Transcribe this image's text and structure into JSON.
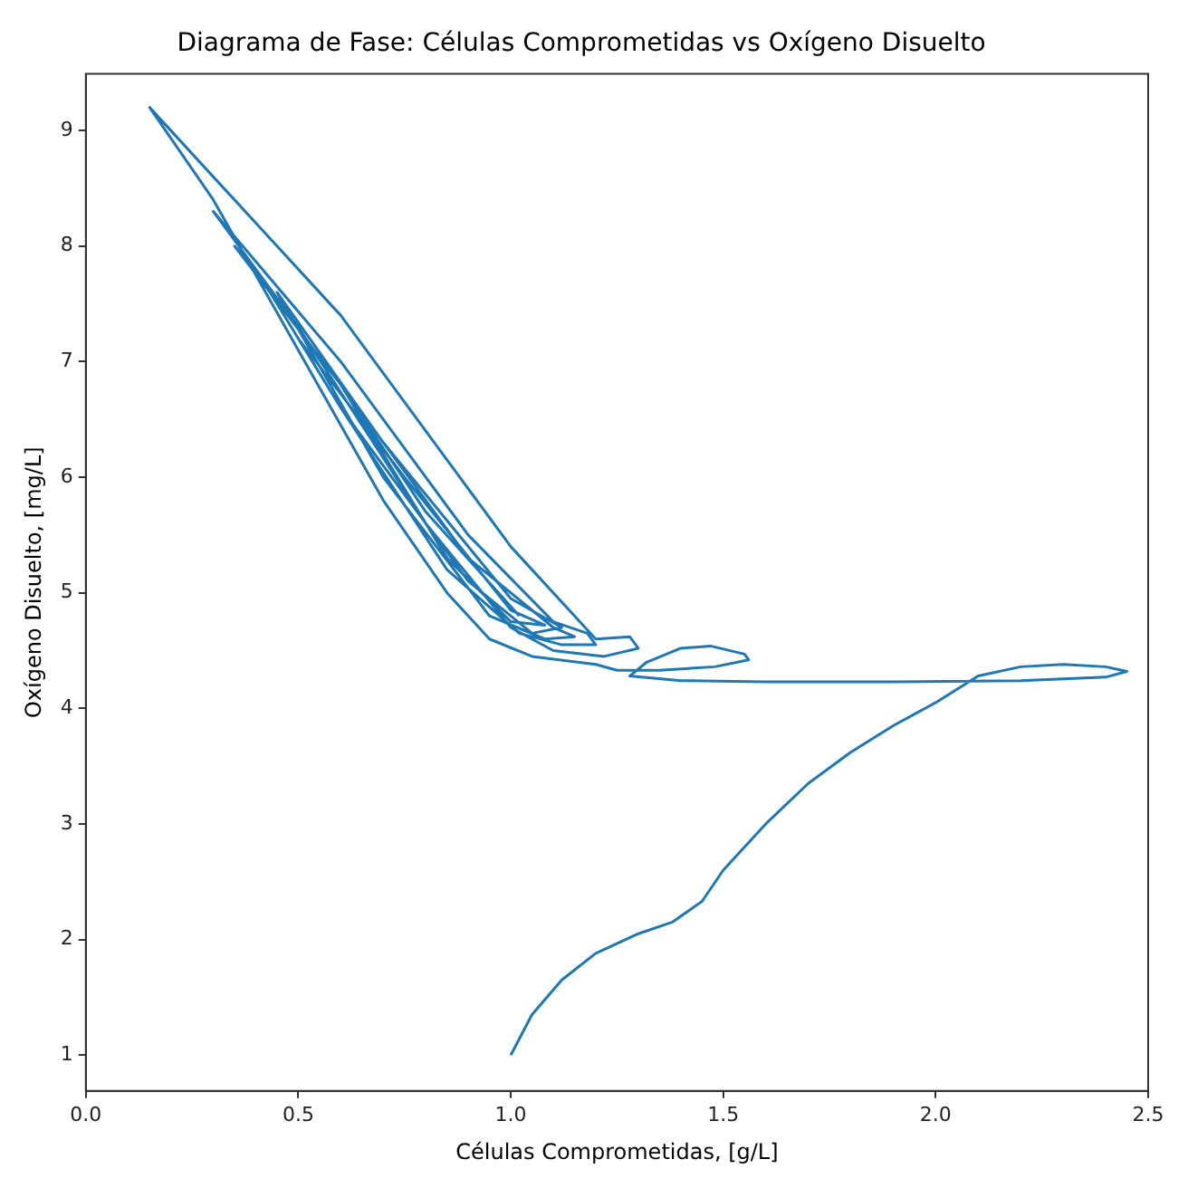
{
  "chart_data": {
    "type": "line",
    "title": "Diagrama de Fase: Células Comprometidas vs Oxígeno Disuelto",
    "xlabel": "Células Comprometidas, [g/L]",
    "ylabel": "Oxígeno Disuelto, [mg/L]",
    "xlim": [
      0,
      2.5
    ],
    "ylim": [
      0.69,
      9.49
    ],
    "xticks": [
      {
        "value": 0,
        "label": "0.0"
      },
      {
        "value": 0.5,
        "label": "0.5"
      },
      {
        "value": 1,
        "label": "1.0"
      },
      {
        "value": 1.5,
        "label": "1.5"
      },
      {
        "value": 2,
        "label": "2.0"
      },
      {
        "value": 2.5,
        "label": "2.5"
      }
    ],
    "yticks": [
      1,
      2,
      3,
      4,
      5,
      6,
      7,
      8,
      9
    ],
    "grid": false,
    "legend": false,
    "marker": "none",
    "line_style": "solid",
    "series": [
      {
        "color": "#1f77b4",
        "x": [
          1.0,
          1.05,
          1.12,
          1.2,
          1.3,
          1.38,
          1.45,
          1.5,
          1.6,
          1.7,
          1.8,
          1.9,
          2.0,
          2.1,
          2.2,
          2.3,
          2.4,
          2.45,
          2.4,
          2.2,
          1.9,
          1.6,
          1.4,
          1.28,
          1.32,
          1.4,
          1.47,
          1.55,
          1.56,
          1.48,
          1.35,
          1.25,
          1.2,
          1.05,
          0.95,
          0.85,
          0.7,
          0.5,
          0.3,
          0.15,
          0.6,
          1.0,
          1.2,
          1.28,
          1.3,
          1.22,
          1.1,
          1.0,
          0.8,
          0.5,
          0.3,
          0.6,
          0.9,
          1.1,
          1.18,
          1.2,
          1.12,
          1.02,
          0.85,
          0.6,
          0.4,
          0.35,
          0.6,
          0.9,
          1.1,
          1.15,
          1.08,
          0.95,
          0.7,
          0.45,
          0.7,
          1.0,
          1.12,
          1.05,
          0.9,
          0.6,
          0.5,
          0.75,
          1.0,
          1.08,
          1.0,
          0.85,
          0.6,
          0.8,
          1.02
        ],
        "values": [
          1.0,
          1.35,
          1.65,
          1.88,
          2.05,
          2.15,
          2.33,
          2.6,
          3.0,
          3.35,
          3.62,
          3.85,
          4.05,
          4.28,
          4.36,
          4.38,
          4.36,
          4.32,
          4.27,
          4.24,
          4.23,
          4.23,
          4.24,
          4.28,
          4.4,
          4.52,
          4.54,
          4.47,
          4.42,
          4.36,
          4.33,
          4.33,
          4.38,
          4.45,
          4.6,
          5.0,
          5.8,
          7.1,
          8.4,
          9.2,
          7.4,
          5.4,
          4.6,
          4.62,
          4.52,
          4.45,
          4.5,
          4.7,
          5.6,
          7.3,
          8.3,
          7.0,
          5.5,
          4.75,
          4.65,
          4.55,
          4.55,
          4.65,
          5.2,
          6.6,
          7.8,
          8.0,
          6.8,
          5.3,
          4.7,
          4.62,
          4.6,
          4.8,
          6.0,
          7.6,
          6.3,
          4.95,
          4.7,
          4.65,
          5.1,
          6.6,
          7.2,
          6.0,
          4.85,
          4.72,
          4.75,
          5.3,
          6.8,
          5.7,
          4.8
        ]
      }
    ]
  }
}
